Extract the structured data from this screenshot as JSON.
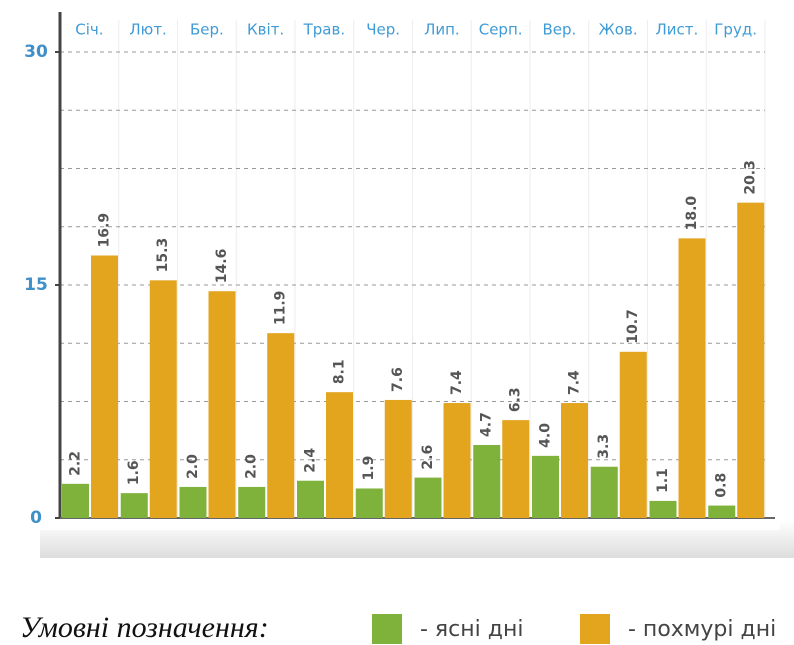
{
  "chart_data": {
    "type": "bar",
    "categories": [
      "Січ.",
      "Лют.",
      "Бер.",
      "Квіт.",
      "Трав.",
      "Чер.",
      "Лип.",
      "Серп.",
      "Вер.",
      "Жов.",
      "Лист.",
      "Груд."
    ],
    "series": [
      {
        "name": "- ясні дні",
        "color": "#7fb23a",
        "values": [
          2.2,
          1.6,
          2.0,
          2.0,
          2.4,
          1.9,
          2.6,
          4.7,
          4.0,
          3.3,
          1.1,
          0.8
        ],
        "value_labels": [
          "2.2",
          "1.6",
          "2.0",
          "2.0",
          "2.4",
          "1.9",
          "2.6",
          "4.7",
          "4.0",
          "3.3",
          "1.1",
          "0.8"
        ]
      },
      {
        "name": "- похмурі дні",
        "color": "#e3a41e",
        "values": [
          16.9,
          15.3,
          14.6,
          11.9,
          8.1,
          7.6,
          7.4,
          6.3,
          7.4,
          10.7,
          18.0,
          20.3
        ],
        "value_labels": [
          "16.9",
          "15.3",
          "14.6",
          "11.9",
          "8.1",
          "7.6",
          "7.4",
          "6.3",
          "7.4",
          "10.7",
          "18.0",
          "20.3"
        ]
      }
    ],
    "ylim": [
      0,
      30
    ],
    "yticks": [
      0,
      15,
      30
    ],
    "minor_yticks": [
      3.75,
      7.5,
      11.25,
      18.75,
      22.5,
      26.25
    ],
    "grid": true,
    "legend_title": "Умовні позначення:",
    "legend": "bottom"
  }
}
